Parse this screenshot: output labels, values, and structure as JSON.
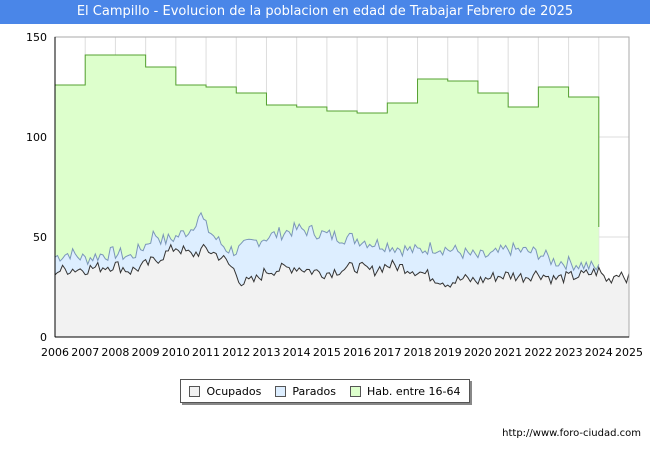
{
  "chart_data": {
    "type": "area",
    "title": "El Campillo - Evolucion de la poblacion en edad de Trabajar Febrero de 2025",
    "watermark": "FORO-CIUDAD.COM",
    "source": "http://www.foro-ciudad.com",
    "xlabel": "",
    "ylabel": "",
    "xlim": [
      2006,
      2025
    ],
    "ylim": [
      0,
      150
    ],
    "y_ticks": [
      0,
      50,
      100,
      150
    ],
    "x_ticks": [
      "2006",
      "2007",
      "2008",
      "2009",
      "2010",
      "2011",
      "2012",
      "2013",
      "2014",
      "2015",
      "2016",
      "2017",
      "2018",
      "2019",
      "2020",
      "2021",
      "2022",
      "2023",
      "2024",
      "2025"
    ],
    "grid": true,
    "legend_position": "bottom",
    "colors": {
      "ocupados_fill": "#f2f2f2",
      "ocupados_line": "#333333",
      "parados_fill": "#ddeeff",
      "parados_line": "#7a96b8",
      "hab_fill": "#ddffcc",
      "hab_line": "#55a031",
      "title_bg": "#4a86e8"
    },
    "hab_entre_16_64": {
      "name": "Hab. entre 16-64",
      "years": [
        2006,
        2007,
        2008,
        2009,
        2010,
        2011,
        2012,
        2013,
        2014,
        2015,
        2016,
        2017,
        2018,
        2019,
        2020,
        2021,
        2022,
        2023
      ],
      "values": [
        126,
        141,
        141,
        135,
        126,
        125,
        122,
        116,
        115,
        113,
        112,
        117,
        129,
        128,
        122,
        115,
        125,
        120
      ],
      "end_year": 2024
    },
    "parados_anchors": {
      "name": "Parados",
      "years": [
        2006.0,
        2006.5,
        2007.0,
        2007.5,
        2008.0,
        2008.5,
        2009.0,
        2009.3,
        2009.6,
        2010.0,
        2010.5,
        2010.8,
        2011.0,
        2011.4,
        2011.7,
        2012.0,
        2012.5,
        2013.0,
        2013.5,
        2014.0,
        2014.5,
        2015.0,
        2015.5,
        2016.0,
        2016.5,
        2017.0,
        2017.5,
        2018.0,
        2018.5,
        2019.0,
        2019.5,
        2020.0,
        2020.5,
        2021.0,
        2021.5,
        2022.0,
        2022.5,
        2023.0,
        2023.5,
        2024.0
      ],
      "values": [
        40,
        42,
        39,
        41,
        42,
        40,
        46,
        52,
        48,
        50,
        54,
        62,
        55,
        48,
        44,
        43,
        47,
        50,
        52,
        54,
        53,
        51,
        50,
        49,
        47,
        46,
        44,
        43,
        45,
        44,
        42,
        40,
        41,
        44,
        43,
        42,
        38,
        37,
        36,
        34
      ]
    },
    "ocupados_anchors": {
      "name": "Ocupados",
      "years": [
        2006.0,
        2006.5,
        2007.0,
        2007.5,
        2008.0,
        2008.5,
        2009.0,
        2009.5,
        2010.0,
        2010.5,
        2011.0,
        2011.5,
        2011.9,
        2012.2,
        2012.6,
        2013.0,
        2013.5,
        2014.0,
        2014.5,
        2015.0,
        2015.5,
        2016.0,
        2016.5,
        2017.0,
        2017.5,
        2018.0,
        2018.5,
        2019.0,
        2019.5,
        2020.0,
        2020.5,
        2021.0,
        2021.5,
        2022.0,
        2022.5,
        2023.0,
        2023.5,
        2024.0,
        2024.3,
        2024.7,
        2025.0
      ],
      "values": [
        33,
        34,
        34,
        35,
        36,
        33,
        36,
        40,
        45,
        41,
        44,
        40,
        34,
        27,
        28,
        33,
        34,
        35,
        33,
        32,
        34,
        35,
        33,
        36,
        35,
        33,
        30,
        27,
        29,
        28,
        30,
        31,
        30,
        32,
        29,
        30,
        31,
        33,
        28,
        33,
        29
      ]
    },
    "legend": [
      "Ocupados",
      "Parados",
      "Hab. entre 16-64"
    ]
  }
}
